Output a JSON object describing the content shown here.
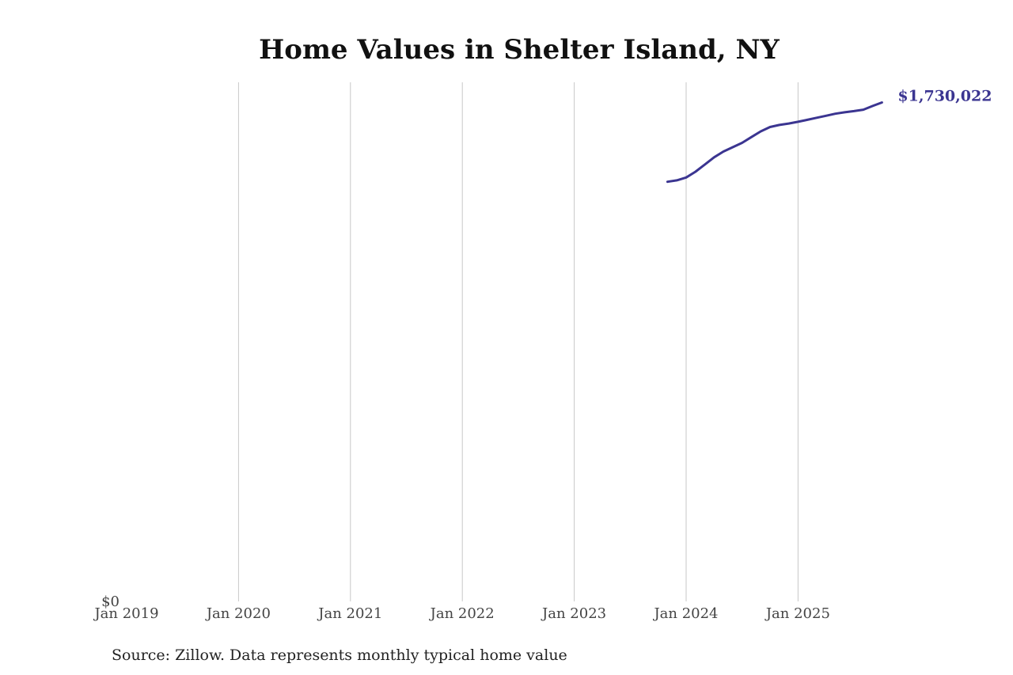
{
  "chart_data": {
    "type": "line",
    "title": "Home Values in Shelter Island, NY",
    "xlabel": "",
    "ylabel": "",
    "xlim": [
      "2019-01",
      "2025-12"
    ],
    "ylim": [
      0,
      1800000
    ],
    "x_ticks": [
      {
        "value": "2019-01",
        "label": "Jan 2019"
      },
      {
        "value": "2020-01",
        "label": "Jan 2020"
      },
      {
        "value": "2021-01",
        "label": "Jan 2021"
      },
      {
        "value": "2022-01",
        "label": "Jan 2022"
      },
      {
        "value": "2023-01",
        "label": "Jan 2023"
      },
      {
        "value": "2024-01",
        "label": "Jan 2024"
      },
      {
        "value": "2025-01",
        "label": "Jan 2025"
      }
    ],
    "y_ticks": [
      {
        "value": 0,
        "label": "$0"
      }
    ],
    "grid": {
      "vertical": true,
      "horizontal": false
    },
    "series": [
      {
        "color": "#3b3591",
        "x": [
          "2023-11",
          "2023-12",
          "2024-01",
          "2024-02",
          "2024-03",
          "2024-04",
          "2024-05",
          "2024-06",
          "2024-07",
          "2024-08",
          "2024-09",
          "2024-10",
          "2024-11",
          "2024-12",
          "2025-01",
          "2025-02",
          "2025-03",
          "2025-04",
          "2025-05",
          "2025-06",
          "2025-07",
          "2025-08",
          "2025-09",
          "2025-10"
        ],
        "values": [
          1455000,
          1460000,
          1470000,
          1490000,
          1515000,
          1540000,
          1560000,
          1575000,
          1590000,
          1610000,
          1630000,
          1645000,
          1652000,
          1657000,
          1663000,
          1670000,
          1677000,
          1684000,
          1691000,
          1696000,
          1700000,
          1705000,
          1718000,
          1730022
        ],
        "end_label": "$1,730,022"
      }
    ]
  },
  "source_note": "Source: Zillow. Data represents monthly typical home value"
}
